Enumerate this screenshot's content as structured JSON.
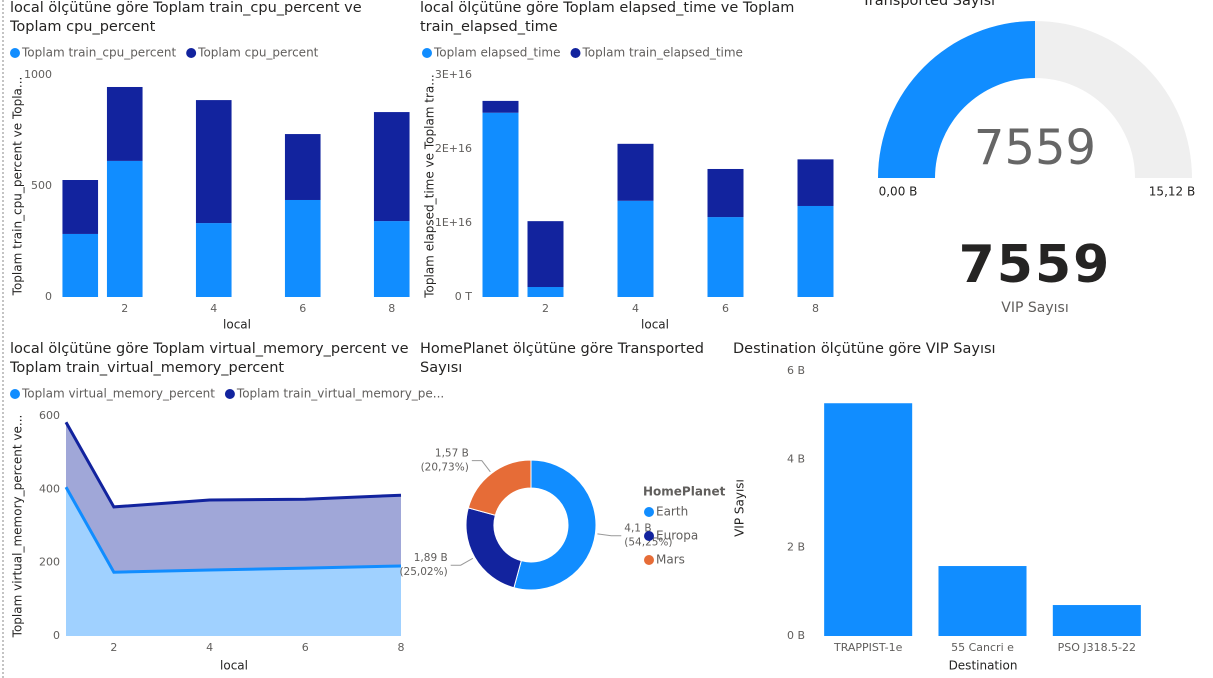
{
  "chart_data": [
    {
      "type": "stacked_bar",
      "title": "local ölçütüne göre Toplam train_cpu_percent ve Toplam cpu_percent",
      "x": [
        1,
        2,
        4,
        6,
        8
      ],
      "xlim": [
        0.5,
        8.5
      ],
      "xticks": [
        2,
        4,
        6,
        8
      ],
      "x_label": "local",
      "y_label": "Toplam train_cpu_percent ve Topla...",
      "ylim": [
        0,
        1000
      ],
      "yticks": [
        0,
        500,
        1000
      ],
      "grid": false,
      "series": [
        {
          "name": "Toplam train_cpu_percent",
          "color": "#118DFF",
          "values": [
            284,
            613,
            333,
            437,
            342
          ]
        },
        {
          "name": "Toplam cpu_percent",
          "color": "#12239E",
          "values": [
            243,
            333,
            554,
            297,
            491
          ]
        }
      ]
    },
    {
      "type": "stacked_bar",
      "title": "local ölçütüne göre Toplam elapsed_time ve Toplam train_elapsed_time",
      "x": [
        1,
        2,
        4,
        6,
        8
      ],
      "xlim": [
        0.5,
        8.5
      ],
      "xticks": [
        2,
        4,
        6,
        8
      ],
      "x_label": "local",
      "y_label": "Toplam elapsed_time ve Toplam tra...",
      "ylim": [
        0,
        3e+16
      ],
      "yticks": [
        {
          "value": 0,
          "label": "0 T"
        },
        {
          "value": 1e+16,
          "label": "1E+16"
        },
        {
          "value": 2e+16,
          "label": "2E+16"
        },
        {
          "value": 3e+16,
          "label": "3E+16"
        }
      ],
      "grid": false,
      "series": [
        {
          "name": "Toplam elapsed_time",
          "color": "#118DFF",
          "values": [
            2.49e+16,
            1350000000000000.0,
            1.3e+16,
            1.08e+16,
            1.23e+16
          ]
        },
        {
          "name": "Toplam train_elapsed_time",
          "color": "#12239E",
          "values": [
            1600000000000000.0,
            8900000000000000.0,
            7700000000000000.0,
            6500000000000000.0,
            6300000000000000.0
          ]
        }
      ]
    },
    {
      "type": "gauge",
      "title": "Transported Sayısı",
      "value": 7559,
      "color": "#118DFF",
      "track_color": "#EFEFEF",
      "min": {
        "value": 0,
        "label": "0,00 B"
      },
      "max": {
        "value": 15118,
        "label": "15,12 B"
      }
    },
    {
      "type": "card",
      "value": 7559,
      "label": "VIP Sayısı"
    },
    {
      "type": "area",
      "title": "local ölçütüne göre Toplam virtual_memory_percent ve Toplam train_virtual_memory_percent",
      "x": [
        1,
        2,
        4,
        6,
        8
      ],
      "xlim": [
        1,
        8
      ],
      "xticks": [
        2,
        4,
        6,
        8
      ],
      "x_label": "local",
      "y_label": "Toplam virtual_memory_percent ve...",
      "ylim": [
        0,
        600
      ],
      "yticks": [
        0,
        200,
        400,
        600
      ],
      "grid": false,
      "series": [
        {
          "name": "Toplam virtual_memory_percent",
          "color": "#118DFF",
          "values": [
            406,
            174,
            180,
            185,
            191
          ]
        },
        {
          "name": "Toplam train_virtual_memory_pe...",
          "color": "#12239E",
          "values": [
            583,
            352,
            371,
            373,
            384
          ]
        }
      ]
    },
    {
      "type": "donut",
      "title": "HomePlanet ölçütüne göre Transported Sayısı",
      "legend_title": "HomePlanet",
      "categories": [
        "Earth",
        "Europa",
        "Mars"
      ],
      "colors": [
        "#118DFF",
        "#12239E",
        "#E66C37"
      ],
      "values": [
        4100,
        1890,
        1570
      ],
      "value_labels": [
        "4,1 B",
        "1,89 B",
        "1,57 B"
      ],
      "percent_labels": [
        "(54,25%)",
        "(25,02%)",
        "(20,73%)"
      ]
    },
    {
      "type": "bar",
      "title": "Destination ölçütüne göre VIP Sayısı",
      "x_label": "Destination",
      "y_label": "VIP Sayısı",
      "categories": [
        "TRAPPIST-1e",
        "55 Cancri e",
        "PSO J318.5-22"
      ],
      "values": [
        5270,
        1584,
        701
      ],
      "color": "#118DFF",
      "ylim": [
        0,
        6000
      ],
      "yticks": [
        {
          "value": 0,
          "label": "0 B"
        },
        {
          "value": 2000,
          "label": "2 B"
        },
        {
          "value": 4000,
          "label": "4 B"
        },
        {
          "value": 6000,
          "label": "6 B"
        }
      ],
      "grid": false
    }
  ]
}
